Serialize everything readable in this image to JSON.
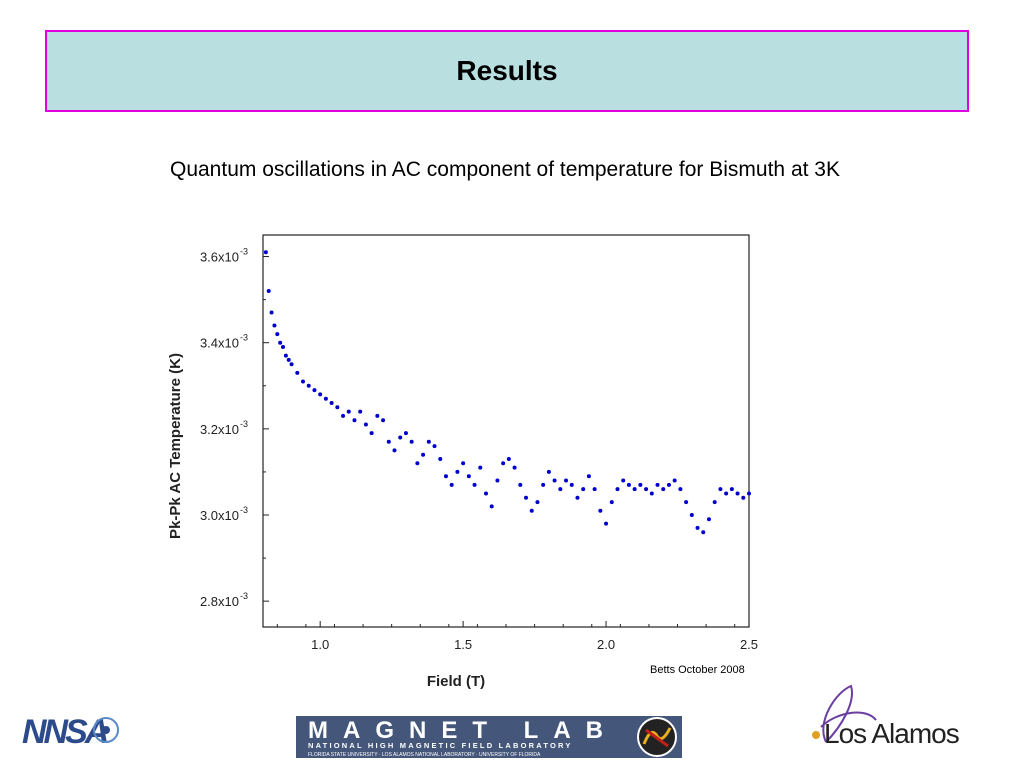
{
  "header": {
    "title": "Results"
  },
  "subtitle": "Quantum oscillations in AC component of temperature for Bismuth at 3K",
  "credit": "Betts October 2008",
  "colors": {
    "title_bg": "#b9dfe1",
    "title_border": "#e000e0",
    "series": "#0000cc"
  },
  "logos": {
    "nnsa": "NNSA",
    "maglab_main": "MAGNET LAB",
    "maglab_sub": "NATIONAL HIGH MAGNETIC FIELD LABORATORY",
    "maglab_sub2": "FLORIDA STATE UNIVERSITY · LOS ALAMOS NATIONAL LABORATORY · UNIVERSITY OF FLORIDA",
    "lanl": "Los Alamos"
  },
  "chart_data": {
    "type": "scatter",
    "xlabel": "Field (T)",
    "ylabel": "Pk-Pk AC Temperature (K)",
    "xlim": [
      0.8,
      2.5
    ],
    "ylim": [
      0.00274,
      0.00365
    ],
    "xticks": [
      1.0,
      1.5,
      2.0,
      2.5
    ],
    "xtick_labels": [
      "1.0",
      "1.5",
      "2.0",
      "2.5"
    ],
    "yticks": [
      0.0028,
      0.003,
      0.0032,
      0.0034,
      0.0036
    ],
    "ytick_labels": [
      {
        "mant": "2.8x10",
        "exp": "-3"
      },
      {
        "mant": "3.0x10",
        "exp": "-3"
      },
      {
        "mant": "3.2x10",
        "exp": "-3"
      },
      {
        "mant": "3.4x10",
        "exp": "-3"
      },
      {
        "mant": "3.6x10",
        "exp": "-3"
      }
    ],
    "grid": false,
    "series": [
      {
        "x": [
          0.81,
          0.82,
          0.83,
          0.84,
          0.85,
          0.86,
          0.87,
          0.88,
          0.89,
          0.9,
          0.92,
          0.94,
          0.96,
          0.98,
          1.0,
          1.02,
          1.04,
          1.06,
          1.08,
          1.1,
          1.12,
          1.14,
          1.16,
          1.18,
          1.2,
          1.22,
          1.24,
          1.26,
          1.28,
          1.3,
          1.32,
          1.34,
          1.36,
          1.38,
          1.4,
          1.42,
          1.44,
          1.46,
          1.48,
          1.5,
          1.52,
          1.54,
          1.56,
          1.58,
          1.6,
          1.62,
          1.64,
          1.66,
          1.68,
          1.7,
          1.72,
          1.74,
          1.76,
          1.78,
          1.8,
          1.82,
          1.84,
          1.86,
          1.88,
          1.9,
          1.92,
          1.94,
          1.96,
          1.98,
          2.0,
          2.02,
          2.04,
          2.06,
          2.08,
          2.1,
          2.12,
          2.14,
          2.16,
          2.18,
          2.2,
          2.22,
          2.24,
          2.26,
          2.28,
          2.3,
          2.32,
          2.34,
          2.36,
          2.38,
          2.4,
          2.42,
          2.44,
          2.46,
          2.48,
          2.5
        ],
        "y": [
          0.00361,
          0.00352,
          0.00347,
          0.00344,
          0.00342,
          0.0034,
          0.00339,
          0.00337,
          0.00336,
          0.00335,
          0.00333,
          0.00331,
          0.0033,
          0.00329,
          0.00328,
          0.00327,
          0.00326,
          0.00325,
          0.00323,
          0.00324,
          0.00322,
          0.00324,
          0.00321,
          0.00319,
          0.00323,
          0.00322,
          0.00317,
          0.00315,
          0.00318,
          0.00319,
          0.00317,
          0.00312,
          0.00314,
          0.00317,
          0.00316,
          0.00313,
          0.00309,
          0.00307,
          0.0031,
          0.00312,
          0.00309,
          0.00307,
          0.00311,
          0.00305,
          0.00302,
          0.00308,
          0.00312,
          0.00313,
          0.00311,
          0.00307,
          0.00304,
          0.00301,
          0.00303,
          0.00307,
          0.0031,
          0.00308,
          0.00306,
          0.00308,
          0.00307,
          0.00304,
          0.00306,
          0.00309,
          0.00306,
          0.00301,
          0.00298,
          0.00303,
          0.00306,
          0.00308,
          0.00307,
          0.00306,
          0.00307,
          0.00306,
          0.00305,
          0.00307,
          0.00306,
          0.00307,
          0.00308,
          0.00306,
          0.00303,
          0.003,
          0.00297,
          0.00296,
          0.00299,
          0.00303,
          0.00306,
          0.00305,
          0.00306,
          0.00305,
          0.00304,
          0.00305
        ]
      }
    ]
  }
}
